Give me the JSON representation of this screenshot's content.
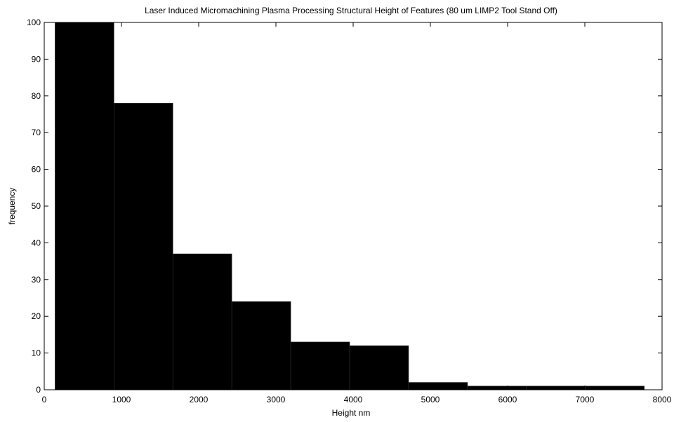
{
  "chart_data": {
    "type": "bar",
    "title": "Laser Induced Micromachining Plasma Processing Structural Height of Features (80 um LIMP2 Tool Stand Off)",
    "xlabel": "Height nm",
    "ylabel": "frequency",
    "xlim": [
      0,
      8000
    ],
    "ylim": [
      0,
      100
    ],
    "xticks": [
      0,
      1000,
      2000,
      3000,
      4000,
      5000,
      6000,
      7000,
      8000
    ],
    "yticks": [
      0,
      10,
      20,
      30,
      40,
      50,
      60,
      70,
      80,
      90,
      100
    ],
    "grid": false,
    "bin_edges": [
      140,
      903,
      1666,
      2429,
      3192,
      3955,
      4718,
      5481,
      6244,
      7007,
      7770
    ],
    "values": [
      100,
      78,
      37,
      24,
      13,
      12,
      2,
      1,
      1,
      1
    ],
    "bar_color": "#000000"
  }
}
